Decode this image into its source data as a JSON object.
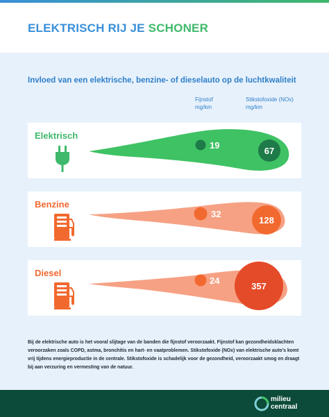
{
  "title": {
    "part1": "ELEKTRISCH RIJ JE",
    "part2": "SCHONER"
  },
  "subtitle": "Invloed van een elektrische, benzine- of dieselauto op de luchtkwaliteit",
  "columns": {
    "pm_line1": "Fijnstof",
    "pm_line2": "mg/km",
    "nox_line1": "Stikstofoxide (NOx)",
    "nox_line2": "mg/km"
  },
  "cars": [
    {
      "label": "Elektrisch",
      "fijnstof": 19,
      "nox": 67,
      "color": "#3fc264",
      "dark": "#1e7a48",
      "icon": "plug-icon"
    },
    {
      "label": "Benzine",
      "fijnstof": 32,
      "nox": 128,
      "color": "#f6a184",
      "dark": "#f2692f",
      "icon": "fuel-pump-icon"
    },
    {
      "label": "Diesel",
      "fijnstof": 24,
      "nox": 357,
      "color": "#f6a184",
      "dark": "#e44b29",
      "icon": "fuel-pump-icon"
    }
  ],
  "footer": "Bij de elektrische auto is het vooral slijtage van de banden die fijnstof veroorzaakt. Fijnstof kan gezondheidsklachten veroorzaken zoals COPD, astma, bronchitis en hart- en vaatproblemen. Stikstofoxide (NOx) van elektrische auto's komt vrij tijdens energieproductie in de centrale. Stikstofoxide is schadelijk voor de gezondheid, veroorzaakt smog en draagt bij aan verzuring en vermesting van de natuur.",
  "logo": {
    "line1": "milieu",
    "line2": "centraal"
  }
}
